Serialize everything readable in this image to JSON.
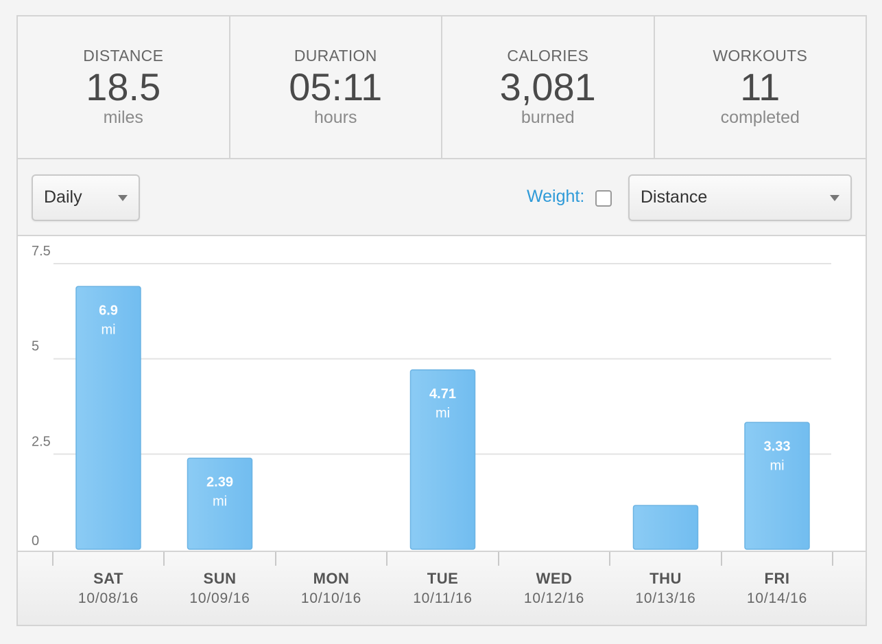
{
  "stats": [
    {
      "label": "DISTANCE",
      "value": "18.5",
      "unit": "miles"
    },
    {
      "label": "DURATION",
      "value": "05:11",
      "unit": "hours"
    },
    {
      "label": "CALORIES",
      "value": "3,081",
      "unit": "burned"
    },
    {
      "label": "WORKOUTS",
      "value": "11",
      "unit": "completed"
    }
  ],
  "controls": {
    "period_select": "Daily",
    "weight_label": "Weight:",
    "weight_checked": false,
    "metric_select": "Distance"
  },
  "colors": {
    "bar": "#7ec4f2",
    "bar_border": "#6bb3e3",
    "weight_label": "#2e9ad8"
  },
  "chart_data": {
    "type": "bar",
    "ylim": [
      0,
      7.5
    ],
    "yticks": [
      "0",
      "2.5",
      "5",
      "7.5"
    ],
    "ytick_values": [
      0,
      2.5,
      5,
      7.5
    ],
    "unit": "mi",
    "categories": [
      {
        "day": "SAT",
        "date": "10/08/16"
      },
      {
        "day": "SUN",
        "date": "10/09/16"
      },
      {
        "day": "MON",
        "date": "10/10/16"
      },
      {
        "day": "TUE",
        "date": "10/11/16"
      },
      {
        "day": "WED",
        "date": "10/12/16"
      },
      {
        "day": "THU",
        "date": "10/13/16"
      },
      {
        "day": "FRI",
        "date": "10/14/16"
      }
    ],
    "values": [
      6.9,
      2.39,
      0,
      4.71,
      0,
      1.15,
      3.33
    ],
    "value_labels": [
      "6.9",
      "2.39",
      "",
      "4.71",
      "",
      "",
      "3.33"
    ]
  }
}
